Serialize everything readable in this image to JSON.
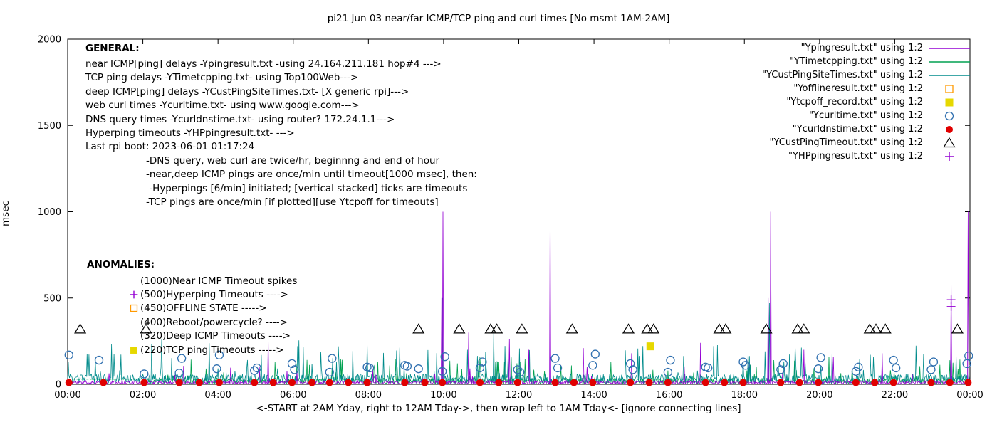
{
  "chart_data": {
    "type": "line",
    "title": "pi21 Jun 03  near/far ICMP/TCP ping and curl times [No msmt 1AM-2AM]",
    "xlabel": "<-START at 2AM Yday, right to 12AM Tday->, then wrap left to 1AM Tday<- [ignore connecting lines]",
    "ylabel": "msec",
    "ylim": [
      0,
      2000
    ],
    "x_unit": "minutes since first sample (24h span)",
    "x_range_minutes": [
      0,
      1440
    ],
    "yticks": [
      0,
      500,
      1000,
      1500,
      2000
    ],
    "xticks": [
      "00:00",
      "02:00",
      "04:00",
      "06:00",
      "08:00",
      "10:00",
      "12:00",
      "14:00",
      "16:00",
      "18:00",
      "20:00",
      "22:00",
      "00:00"
    ],
    "grid": false,
    "legend_position": "top-right",
    "series": [
      {
        "name": "YTimetcpping.txt (TCP ping delays)",
        "style": "line",
        "color": "#00a050",
        "baseline": {
          "seed": 22,
          "min": 3,
          "jitter": 32,
          "spike_chance": 0.05,
          "spike_max": 130
        },
        "flat_start": {
          "until_minute": 128,
          "value": 30
        },
        "spikes": []
      },
      {
        "name": "YCustPingSiteTimes.txt (deep ICMP delays)",
        "style": "line",
        "color": "#008b8b",
        "baseline": {
          "seed": 33,
          "min": 4,
          "jitter": 55,
          "spike_chance": 0.06,
          "spike_max": 210
        },
        "spikes": [
          [
            598,
            500
          ],
          [
            680,
            300
          ],
          [
            1120,
            470
          ]
        ]
      },
      {
        "name": "Ypingresult.txt (near ICMP delays)",
        "style": "line",
        "color": "#9400d3",
        "baseline": {
          "seed": 11,
          "min": 1,
          "jitter": 20,
          "spike_chance": 0.02,
          "spike_max": 110
        },
        "spikes": [
          [
            320,
            250
          ],
          [
            597,
            500
          ],
          [
            599,
            1000
          ],
          [
            640,
            300
          ],
          [
            705,
            260
          ],
          [
            736,
            200
          ],
          [
            770,
            1000
          ],
          [
            823,
            210
          ],
          [
            900,
            180
          ],
          [
            1010,
            240
          ],
          [
            1118,
            500
          ],
          [
            1122,
            1000
          ],
          [
            1175,
            200
          ],
          [
            1222,
            160
          ],
          [
            1300,
            180
          ],
          [
            1410,
            580
          ],
          [
            1437,
            1000
          ]
        ]
      },
      {
        "name": "Yofflineresult.txt (offline state)",
        "style": "scatter",
        "marker": "open-square",
        "color": "#ff9900",
        "value_level": 450,
        "points": []
      },
      {
        "name": "Ytcpoff_record.txt (TCP ping timeouts)",
        "style": "scatter",
        "marker": "filled-square",
        "color": "#e6d800",
        "value_level": 220,
        "points": [
          [
            930,
            220
          ]
        ]
      },
      {
        "name": "Ycurltime.txt (web curl times)",
        "style": "scatter",
        "marker": "open-circle",
        "color": "#3070b0",
        "points": [
          [
            2,
            170
          ],
          [
            50,
            140
          ],
          [
            122,
            60
          ],
          [
            178,
            65
          ],
          [
            182,
            150
          ],
          [
            238,
            90
          ],
          [
            242,
            170
          ],
          [
            298,
            80
          ],
          [
            302,
            95
          ],
          [
            358,
            120
          ],
          [
            362,
            85
          ],
          [
            418,
            70
          ],
          [
            422,
            150
          ],
          [
            478,
            100
          ],
          [
            482,
            95
          ],
          [
            538,
            110
          ],
          [
            542,
            105
          ],
          [
            560,
            90
          ],
          [
            598,
            75
          ],
          [
            602,
            160
          ],
          [
            658,
            95
          ],
          [
            662,
            130
          ],
          [
            718,
            85
          ],
          [
            722,
            70
          ],
          [
            778,
            150
          ],
          [
            782,
            95
          ],
          [
            838,
            110
          ],
          [
            842,
            175
          ],
          [
            898,
            120
          ],
          [
            902,
            85
          ],
          [
            958,
            70
          ],
          [
            962,
            140
          ],
          [
            1018,
            100
          ],
          [
            1022,
            95
          ],
          [
            1078,
            130
          ],
          [
            1082,
            110
          ],
          [
            1138,
            85
          ],
          [
            1142,
            120
          ],
          [
            1198,
            90
          ],
          [
            1202,
            155
          ],
          [
            1258,
            75
          ],
          [
            1262,
            100
          ],
          [
            1318,
            140
          ],
          [
            1322,
            95
          ],
          [
            1378,
            85
          ],
          [
            1382,
            130
          ],
          [
            1435,
            120
          ],
          [
            1438,
            165
          ]
        ]
      },
      {
        "name": "Ycurldnstime.txt (DNS query times)",
        "style": "scatter",
        "marker": "filled-circle",
        "color": "#e00000",
        "points": [
          [
            2,
            10
          ],
          [
            57,
            10
          ],
          [
            122,
            10
          ],
          [
            178,
            10
          ],
          [
            210,
            10
          ],
          [
            242,
            10
          ],
          [
            298,
            10
          ],
          [
            328,
            10
          ],
          [
            358,
            10
          ],
          [
            390,
            10
          ],
          [
            418,
            10
          ],
          [
            448,
            10
          ],
          [
            478,
            10
          ],
          [
            538,
            10
          ],
          [
            570,
            10
          ],
          [
            598,
            10
          ],
          [
            658,
            10
          ],
          [
            688,
            10
          ],
          [
            718,
            10
          ],
          [
            778,
            10
          ],
          [
            808,
            10
          ],
          [
            838,
            10
          ],
          [
            898,
            10
          ],
          [
            928,
            10
          ],
          [
            958,
            10
          ],
          [
            1018,
            10
          ],
          [
            1048,
            10
          ],
          [
            1078,
            10
          ],
          [
            1138,
            10
          ],
          [
            1168,
            10
          ],
          [
            1198,
            10
          ],
          [
            1258,
            10
          ],
          [
            1288,
            10
          ],
          [
            1318,
            10
          ],
          [
            1378,
            10
          ],
          [
            1408,
            10
          ],
          [
            1437,
            10
          ]
        ]
      },
      {
        "name": "YCustPingTimeout.txt (deep ICMP timeouts)",
        "style": "scatter",
        "marker": "open-triangle",
        "color": "#000000",
        "points": [
          [
            20,
            320
          ],
          [
            125,
            320
          ],
          [
            560,
            320
          ],
          [
            625,
            320
          ],
          [
            675,
            320
          ],
          [
            685,
            320
          ],
          [
            725,
            320
          ],
          [
            805,
            320
          ],
          [
            895,
            320
          ],
          [
            925,
            320
          ],
          [
            935,
            320
          ],
          [
            1040,
            320
          ],
          [
            1050,
            320
          ],
          [
            1115,
            320
          ],
          [
            1165,
            320
          ],
          [
            1175,
            320
          ],
          [
            1280,
            320
          ],
          [
            1290,
            320
          ],
          [
            1305,
            320
          ],
          [
            1420,
            320
          ]
        ]
      },
      {
        "name": "YHPpingresult.txt (Hyperping timeouts)",
        "style": "scatter",
        "marker": "plus",
        "color": "#9400d3",
        "points": [
          [
            1410,
            450
          ],
          [
            1410,
            490
          ]
        ]
      }
    ]
  },
  "legend": [
    {
      "label": "\"Ypingresult.txt\" using 1:2",
      "type": "line",
      "color": "#9400d3"
    },
    {
      "label": "\"YTimetcpping.txt\" using 1:2",
      "type": "line",
      "color": "#00a050"
    },
    {
      "label": "\"YCustPingSiteTimes.txt\" using 1:2",
      "type": "line",
      "color": "#008b8b"
    },
    {
      "label": "\"Yofflineresult.txt\" using 1:2",
      "type": "open-square",
      "color": "#ff9900"
    },
    {
      "label": "\"Ytcpoff_record.txt\" using 1:2",
      "type": "filled-square",
      "color": "#e6d800"
    },
    {
      "label": "\"Ycurltime.txt\" using 1:2",
      "type": "open-circle",
      "color": "#3070b0"
    },
    {
      "label": "\"Ycurldnstime.txt\" using 1:2",
      "type": "filled-circle",
      "color": "#e00000"
    },
    {
      "label": "\"YCustPingTimeout.txt\" using 1:2",
      "type": "open-triangle",
      "color": "#000000"
    },
    {
      "label": "\"YHPpingresult.txt\" using 1:2",
      "type": "plus",
      "color": "#9400d3"
    }
  ],
  "general": {
    "heading": "GENERAL:",
    "lines": [
      {
        "text": "near ICMP[ping] delays -Ypingresult.txt -using 24.164.211.181 hop#4 --->",
        "indent": 0
      },
      {
        "text": "TCP ping delays -YTimetcpping.txt- using Top100Web--->",
        "indent": 0
      },
      {
        "text": "deep ICMP[ping] delays -YCustPingSiteTimes.txt- [X generic rpi]--->",
        "indent": 0
      },
      {
        "text": "web curl times -Ycurltime.txt- using www.google.com--->",
        "indent": 0
      },
      {
        "text": "DNS query times -Ycurldnstime.txt- using router? 172.24.1.1--->",
        "indent": 0
      },
      {
        "text": "Hyperping timeouts -YHPpingresult.txt- --->",
        "indent": 0
      },
      {
        "text": "Last rpi boot: 2023-06-01 01:17:24",
        "indent": 0
      },
      {
        "text": "-DNS query, web curl are twice/hr, beginnng and end of hour",
        "indent": 85
      },
      {
        "text": "-near,deep ICMP pings are once/min until timeout[1000 msec], then:",
        "indent": 85
      },
      {
        "text": " -Hyperpings [6/min] initiated; [vertical stacked] ticks are timeouts",
        "indent": 85
      },
      {
        "text": "-TCP pings are once/min [if plotted][use Ytcpoff for timeouts]",
        "indent": 85
      }
    ]
  },
  "anomalies": {
    "heading": "ANOMALIES:",
    "lines": [
      {
        "marker": null,
        "marker_color": null,
        "text": "(1000)Near ICMP Timeout spikes"
      },
      {
        "marker": "plus",
        "marker_color": "#9400d3",
        "text": "(500)Hyperping Timeouts ---->"
      },
      {
        "marker": "open-square",
        "marker_color": "#ff9900",
        "text": "(450)OFFLINE STATE ----->"
      },
      {
        "marker": null,
        "marker_color": null,
        "text": "(400)Reboot/powercycle? ---->"
      },
      {
        "marker": null,
        "marker_color": null,
        "text": "(320)Deep ICMP Timeouts ---->"
      },
      {
        "marker": "filled-square",
        "marker_color": "#e6d800",
        "text": "(220)TCP ping Timeouts ----->"
      }
    ]
  }
}
